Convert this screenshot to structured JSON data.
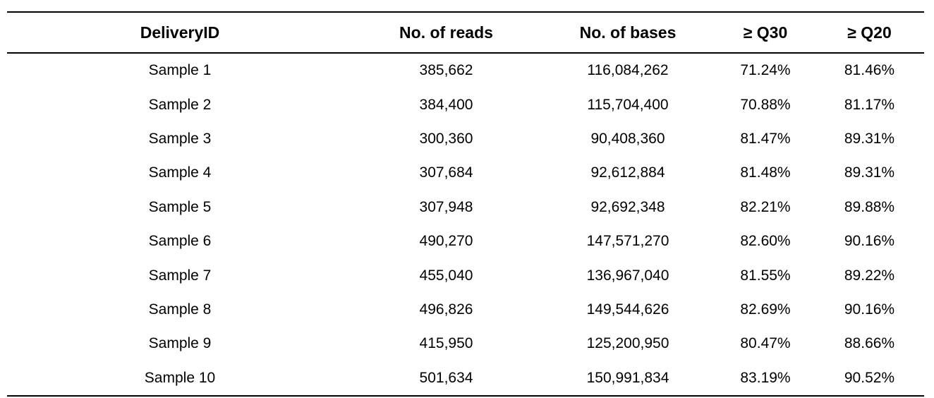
{
  "table": {
    "headers": [
      "DeliveryID",
      "No. of reads",
      "No. of bases",
      "≥ Q30",
      "≥ Q20"
    ],
    "rows": [
      [
        "Sample 1",
        "385,662",
        "116,084,262",
        "71.24%",
        "81.46%"
      ],
      [
        "Sample 2",
        "384,400",
        "115,704,400",
        "70.88%",
        "81.17%"
      ],
      [
        "Sample 3",
        "300,360",
        "90,408,360",
        "81.47%",
        "89.31%"
      ],
      [
        "Sample 4",
        "307,684",
        "92,612,884",
        "81.48%",
        "89.31%"
      ],
      [
        "Sample 5",
        "307,948",
        "92,692,348",
        "82.21%",
        "89.88%"
      ],
      [
        "Sample 6",
        "490,270",
        "147,571,270",
        "82.60%",
        "90.16%"
      ],
      [
        "Sample 7",
        "455,040",
        "136,967,040",
        "81.55%",
        "89.22%"
      ],
      [
        "Sample 8",
        "496,826",
        "149,544,626",
        "82.69%",
        "90.16%"
      ],
      [
        "Sample 9",
        "415,950",
        "125,200,950",
        "80.47%",
        "88.66%"
      ],
      [
        "Sample 10",
        "501,634",
        "150,991,834",
        "83.19%",
        "90.52%"
      ]
    ]
  }
}
